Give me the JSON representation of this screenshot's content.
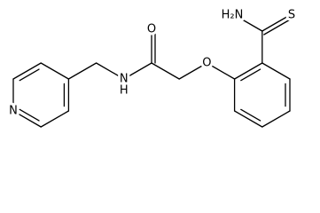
{
  "labels": {
    "thioamide_nitrogen": "H₂N",
    "sulfur": "S",
    "carbonyl_oxygen": "O",
    "ether_oxygen": "O",
    "amide_nitrogen": "N",
    "amide_hydrogen": "H",
    "pyridine_nitrogen": "N"
  }
}
